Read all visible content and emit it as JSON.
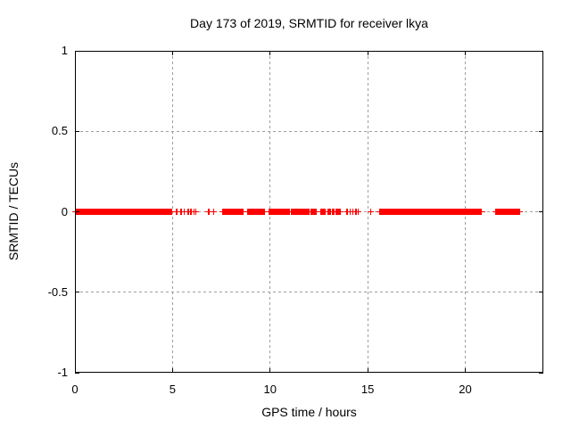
{
  "colors": {
    "data": "#ff0000",
    "grid": "#9e9e9e",
    "border": "#000000",
    "background": "#ffffff",
    "text": "#000000"
  },
  "chart_data": {
    "type": "scatter",
    "marker": "plus",
    "title": "Day 173 of 2019, SRMTID for receiver lkya",
    "xlabel": "GPS time / hours",
    "ylabel": "SRMTID / TECUs",
    "x_min": 0,
    "x_max": 24,
    "y_min": -1,
    "y_max": 1,
    "grid": "dashed",
    "legend": "none",
    "x_ticks": [
      {
        "v": 0,
        "label": "0"
      },
      {
        "v": 5,
        "label": "5"
      },
      {
        "v": 10,
        "label": "10"
      },
      {
        "v": 15,
        "label": "15"
      },
      {
        "v": 20,
        "label": "20"
      }
    ],
    "y_ticks": [
      {
        "v": 1,
        "label": "1"
      },
      {
        "v": 0.5,
        "label": "0.5"
      },
      {
        "v": 0,
        "label": "0"
      },
      {
        "v": -0.5,
        "label": "-0.5"
      },
      {
        "v": -1,
        "label": "-1"
      }
    ],
    "x_gridlines": [
      5,
      10,
      15,
      20
    ],
    "y_gridlines": [
      0.5,
      0,
      -0.5
    ],
    "series": [
      {
        "name": "SRMTID",
        "color": "#ff0000",
        "y_value": 0,
        "band_segments_hours": [
          [
            0,
            5.0
          ],
          [
            7.55,
            8.65
          ],
          [
            8.8,
            9.75
          ],
          [
            9.9,
            11.0
          ],
          [
            11.05,
            12.02
          ],
          [
            12.05,
            12.4
          ],
          [
            12.55,
            12.85
          ],
          [
            12.95,
            13.1
          ],
          [
            13.15,
            13.3
          ],
          [
            13.35,
            13.6
          ],
          [
            15.6,
            20.85
          ],
          [
            21.55,
            22.8
          ]
        ],
        "isolated_points_hours": [
          5.2,
          5.45,
          5.6,
          5.8,
          5.95,
          6.1,
          6.2,
          6.85,
          7.1,
          13.95,
          14.1,
          14.25,
          14.4,
          14.52,
          15.15
        ]
      }
    ]
  }
}
